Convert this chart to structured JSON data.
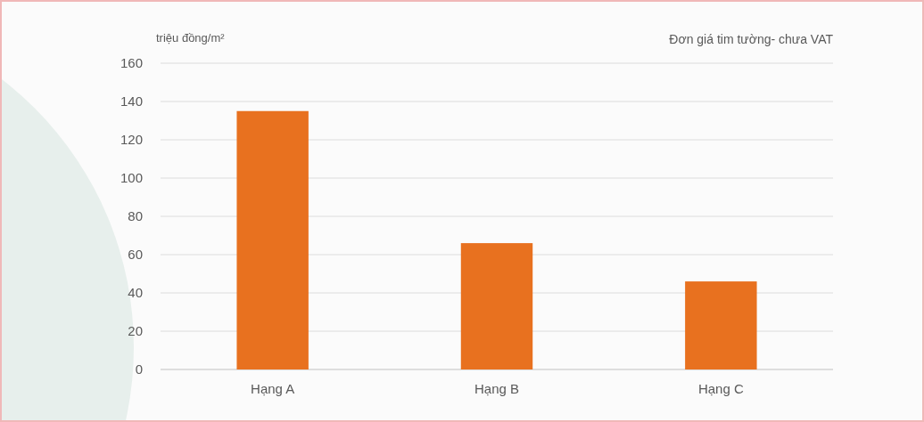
{
  "chart_data": {
    "type": "bar",
    "title": "Đơn giá tim tường- chưa VAT",
    "ylabel": "triệu đồng/m²",
    "categories": [
      "Hạng A",
      "Hạng B",
      "Hạng C"
    ],
    "values": [
      135,
      66,
      46
    ],
    "color": "#e8711f",
    "ylim": [
      0,
      160
    ],
    "yticks": [
      0,
      20,
      40,
      60,
      80,
      100,
      120,
      140,
      160
    ],
    "grid": "y"
  }
}
